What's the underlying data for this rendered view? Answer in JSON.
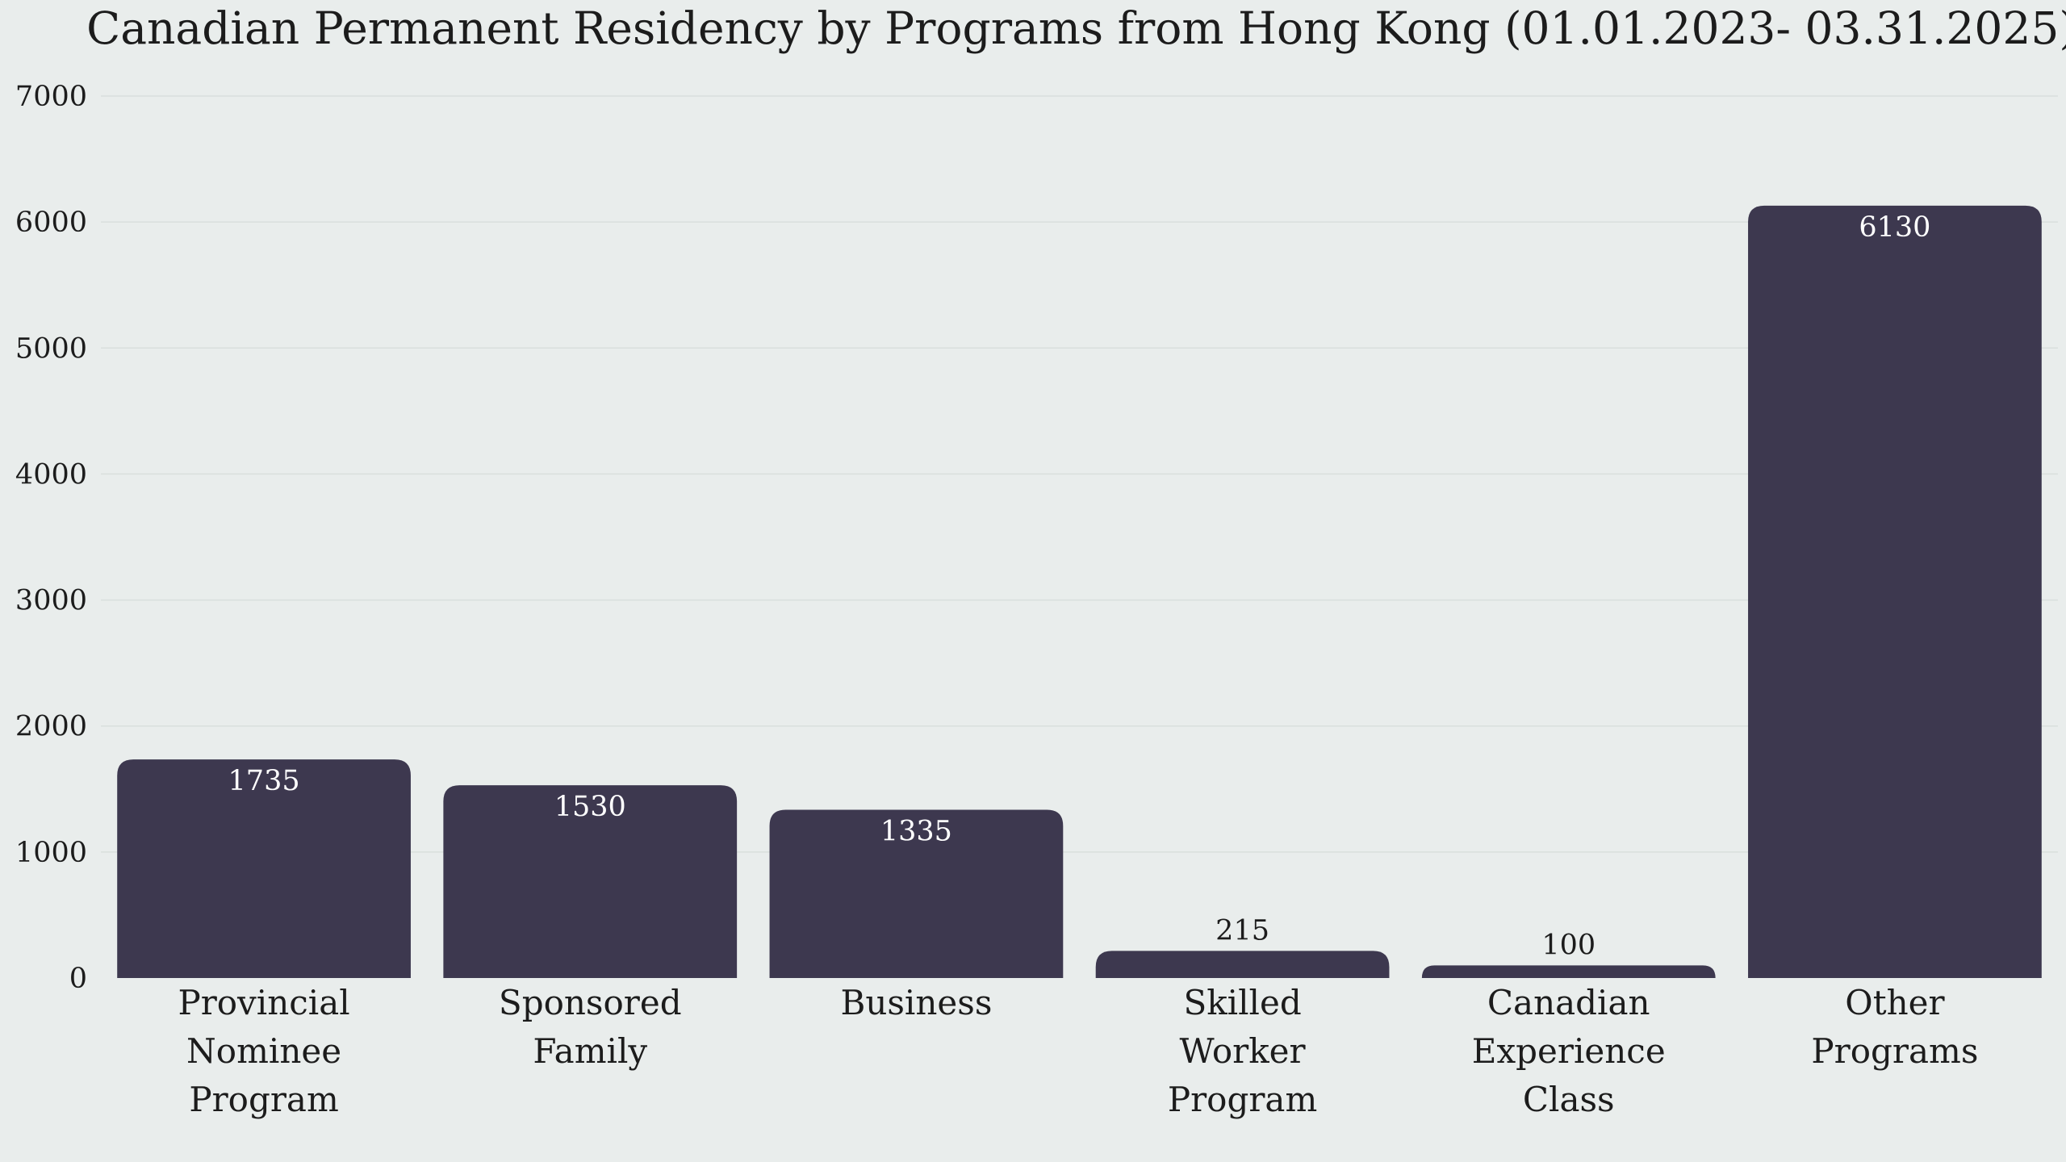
{
  "chart_data": {
    "type": "bar",
    "title": "Canadian Permanent Residency by Programs from Hong Kong (01.01.2023- 03.31.2025)",
    "categories": [
      [
        "Provincial",
        "Nominee",
        "Program"
      ],
      [
        "Sponsored",
        "Family"
      ],
      [
        "Business"
      ],
      [
        "Skilled",
        "Worker",
        "Program"
      ],
      [
        "Canadian",
        "Experience",
        "Class"
      ],
      [
        "Other",
        "Programs"
      ]
    ],
    "values": [
      1735,
      1530,
      1335,
      215,
      100,
      6130
    ],
    "ylim": [
      0,
      7000
    ],
    "yticks": [
      0,
      1000,
      2000,
      3000,
      4000,
      5000,
      6000,
      7000
    ],
    "grid": true,
    "colors": {
      "bar": "#3d384f",
      "background": "#e9edec",
      "label_inside": "#ffffff",
      "label_outside": "#1c1c1c"
    }
  }
}
